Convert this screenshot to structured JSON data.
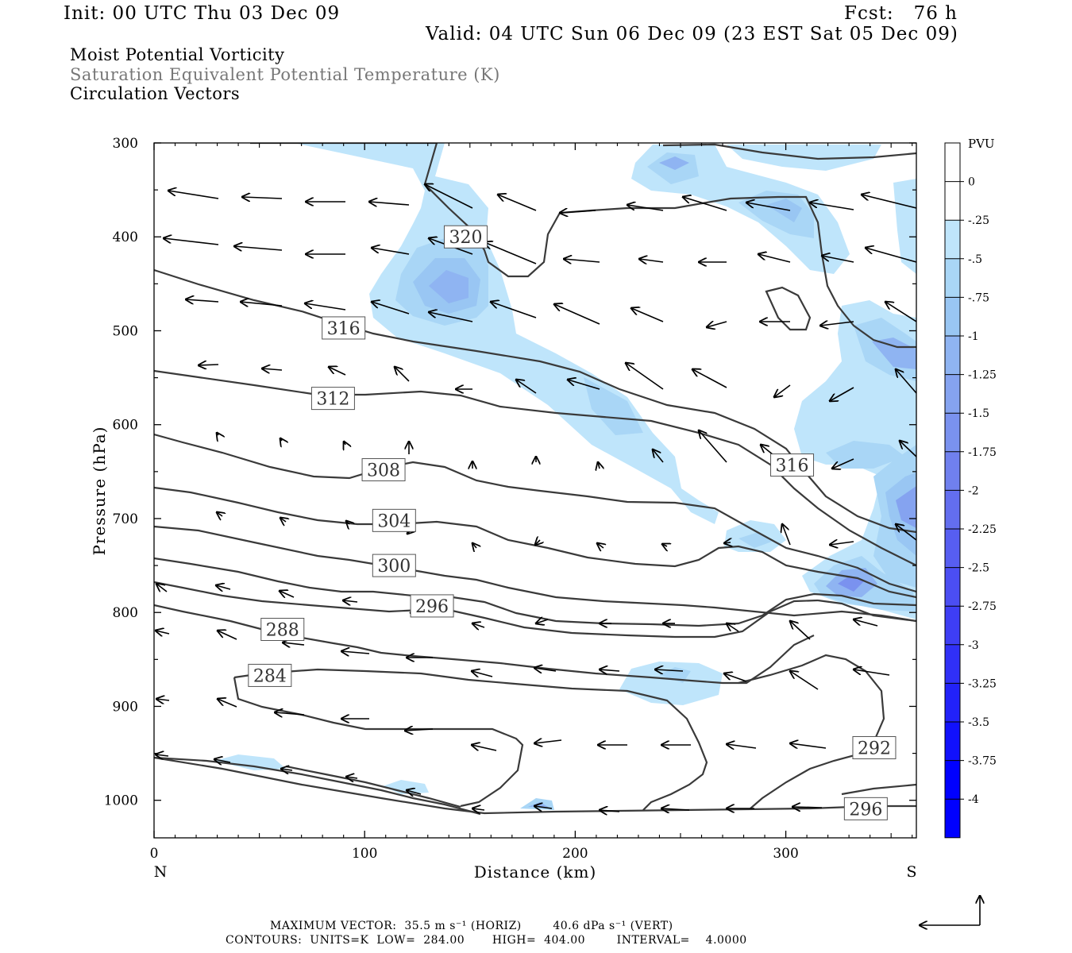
{
  "header": {
    "init": "Init: 00 UTC Thu 03 Dec 09",
    "fcst": "Fcst:   76 h",
    "valid": "Valid: 04 UTC Sun 06 Dec 09 (23 EST Sat 05 Dec 09)",
    "field1": "Moist Potential Vorticity",
    "field2": "Saturation Equivalent Potential Temperature (K)",
    "field3": "Circulation Vectors"
  },
  "footer": {
    "vector_line": "MAXIMUM VECTOR:  35.5 m s⁻¹ (HORIZ)        40.6 dPa s⁻¹ (VERT)",
    "contour_line": "CONTOURS:  UNITS=K  LOW=  284.00       HIGH=  404.00        INTERVAL=    4.0000"
  },
  "colors": {
    "contour": "#3a3a3a",
    "pv_shades": [
      "#ffffff",
      "#ffffff",
      "#bfe5fb",
      "#a9d6f6",
      "#99c6f3",
      "#8fb4f2",
      "#85a3f0",
      "#7a92ef",
      "#7080ee",
      "#636eef",
      "#575ef1",
      "#4b4ef3",
      "#3e3ef5",
      "#3030f7",
      "#2222f9",
      "#1111fc",
      "#0000ff"
    ]
  },
  "chart_data": {
    "type": "cross-section",
    "xlabel": "Distance (km)",
    "ylabel": "Pressure (hPa)",
    "x_end_labels": [
      "N",
      "S"
    ],
    "xlim": [
      0,
      362
    ],
    "ylim": [
      1040,
      300
    ],
    "x_ticks": [
      0,
      100,
      200,
      300
    ],
    "y_ticks": [
      300,
      400,
      500,
      600,
      700,
      800,
      900,
      1000
    ],
    "colorbar": {
      "title": "PVU",
      "labels": [
        "0",
        "-.25",
        "-.5",
        "-.75",
        "-1",
        "-1.25",
        "-1.5",
        "-1.75",
        "-2",
        "-2.25",
        "-2.5",
        "-2.75",
        "-3",
        "-3.25",
        "-3.5",
        "-3.75",
        "-4"
      ]
    },
    "contour_labels": [
      {
        "text": "320",
        "x": 148,
        "p": 400
      },
      {
        "text": "316",
        "x": 90,
        "p": 497
      },
      {
        "text": "312",
        "x": 85,
        "p": 572
      },
      {
        "text": "308",
        "x": 109,
        "p": 648
      },
      {
        "text": "304",
        "x": 114,
        "p": 702
      },
      {
        "text": "300",
        "x": 114,
        "p": 750
      },
      {
        "text": "296",
        "x": 132,
        "p": 793
      },
      {
        "text": "288",
        "x": 61,
        "p": 818
      },
      {
        "text": "284",
        "x": 55,
        "p": 867
      },
      {
        "text": "316",
        "x": 303,
        "p": 643
      },
      {
        "text": "292",
        "x": 342,
        "p": 944
      },
      {
        "text": "296",
        "x": 338,
        "p": 1009
      }
    ]
  }
}
